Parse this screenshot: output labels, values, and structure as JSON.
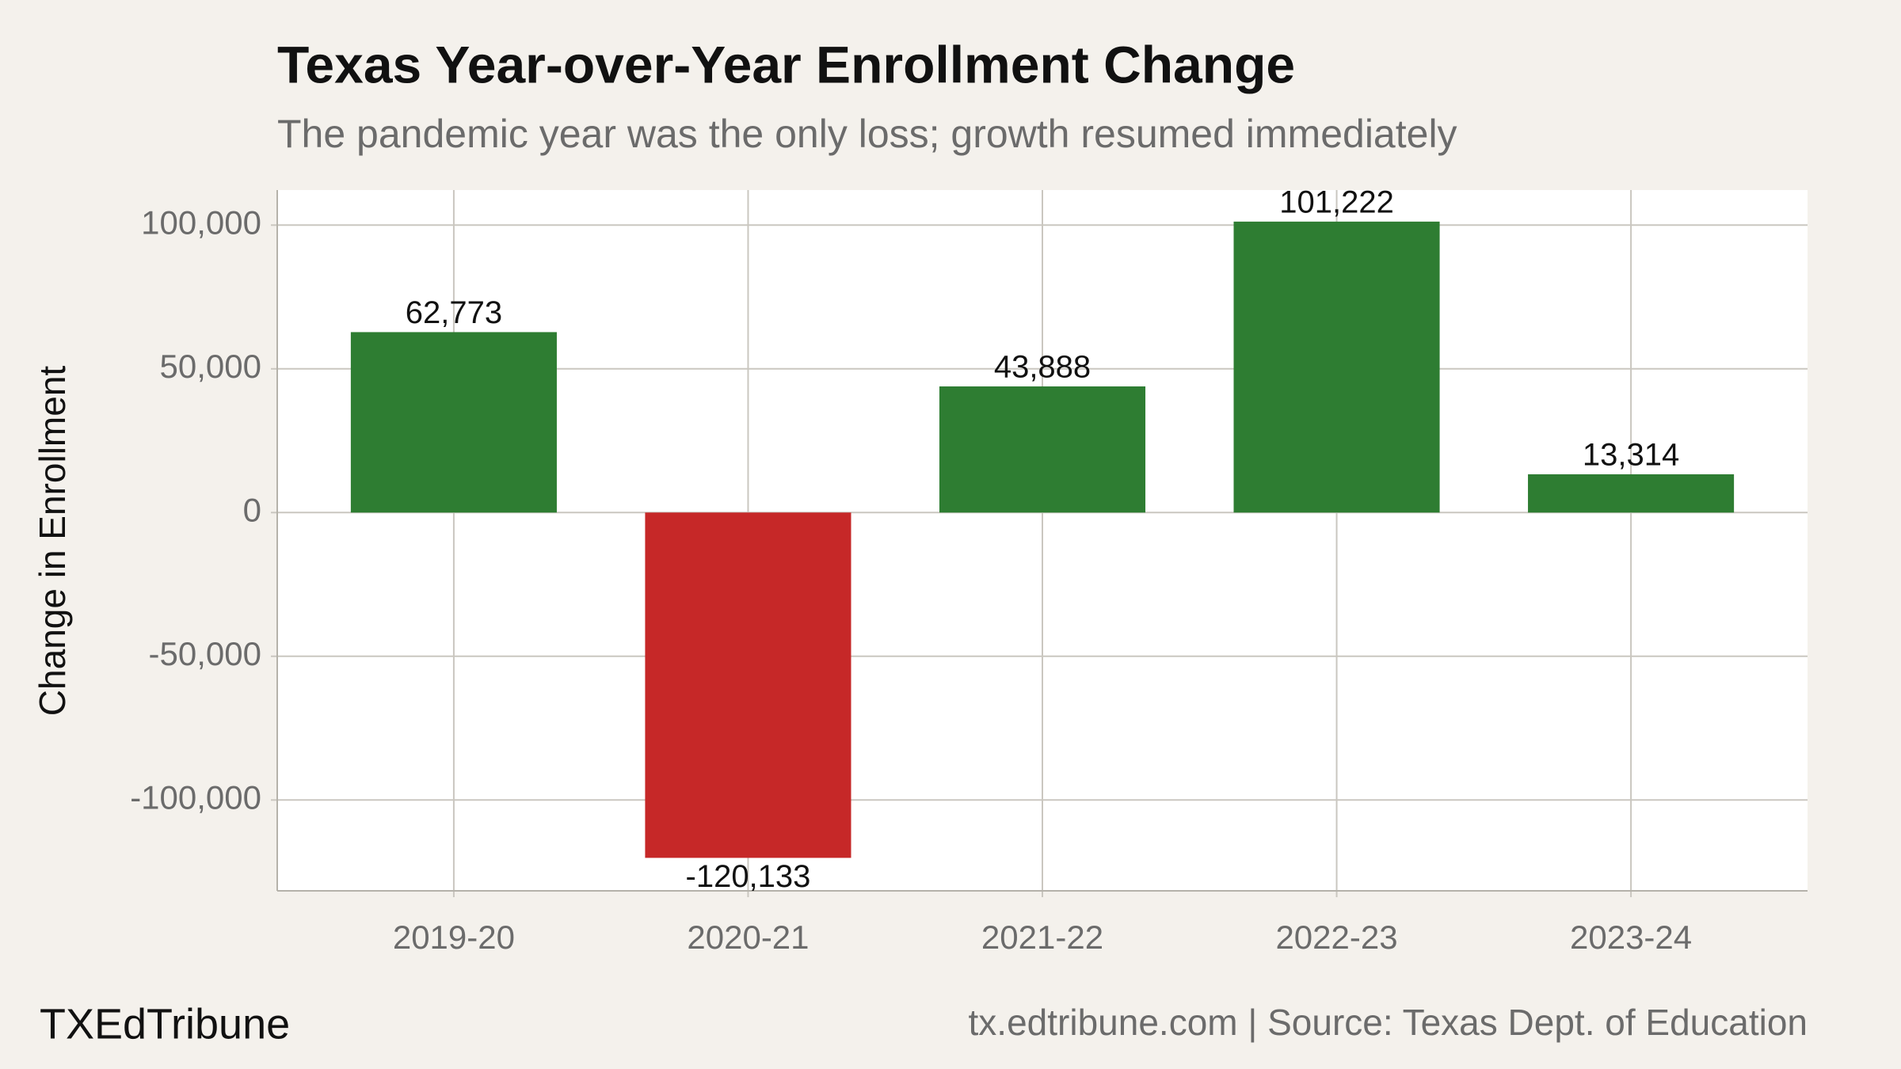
{
  "chart_data": {
    "type": "bar",
    "title": "Texas Year-over-Year Enrollment Change",
    "subtitle": "The pandemic year was the only loss; growth resumed immediately",
    "y_label": "Change in Enrollment",
    "categories": [
      "2019-20",
      "2020-21",
      "2021-22",
      "2022-23",
      "2023-24"
    ],
    "values": [
      62773,
      -120133,
      43888,
      101222,
      13314
    ],
    "value_labels": [
      "62,773",
      "-120,133",
      "43,888",
      "101,222",
      "13,314"
    ],
    "colors": [
      "#2e7d32",
      "#c62828",
      "#2e7d32",
      "#2e7d32",
      "#2e7d32"
    ],
    "ylim": [
      -131600,
      112200
    ],
    "yticks": [
      {
        "value": -100000,
        "label": "-100,000"
      },
      {
        "value": -50000,
        "label": "-50,000"
      },
      0,
      {
        "value": 50000,
        "label": "50,000"
      },
      {
        "value": 100000,
        "label": "100,000"
      }
    ],
    "grid": true,
    "brand": "TXEdTribune",
    "source": "tx.edtribune.com | Source: Texas Dept. of Education"
  }
}
